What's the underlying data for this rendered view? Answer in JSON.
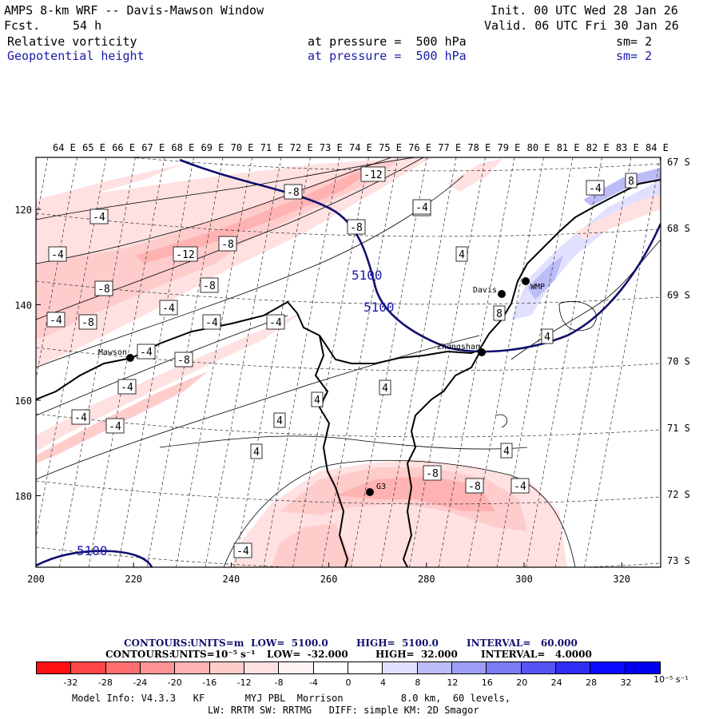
{
  "header": {
    "title": "AMPS 8-km WRF -- Davis-Mawson Window",
    "forecast_label": "Fcst.",
    "forecast_hours": "54 h",
    "init": "Init. 00 UTC Wed 28 Jan 26",
    "valid": "Valid. 06 UTC Fri 30 Jan 26",
    "field1": {
      "name": "Relative vorticity",
      "level": "at pressure =  500 hPa",
      "smooth": "sm= 2"
    },
    "field2": {
      "name": "Geopotential height",
      "level": "at pressure =  500 hPa",
      "smooth": "sm= 2"
    }
  },
  "map": {
    "lon_labels": [
      "64 E",
      "65 E",
      "66 E",
      "67 E",
      "68 E",
      "69 E",
      "70 E",
      "71 E",
      "72 E",
      "73 E",
      "74 E",
      "75 E",
      "76 E",
      "77 E",
      "78 E",
      "79 E",
      "80 E",
      "81 E",
      "82 E",
      "83 E",
      "84 E"
    ],
    "lat_labels": [
      "67 S",
      "68 S",
      "69 S",
      "70 S",
      "71 S",
      "72 S",
      "73 S"
    ],
    "x_ticks": [
      "200",
      "220",
      "240",
      "260",
      "280",
      "300",
      "320"
    ],
    "y_ticks": [
      "120",
      "140",
      "160",
      "180"
    ],
    "stations": [
      {
        "name": "Mawson"
      },
      {
        "name": "Davis"
      },
      {
        "name": "WMP"
      },
      {
        "name": "Zhongshan"
      },
      {
        "name": "G3"
      }
    ],
    "height_labels": [
      "5100",
      "5100",
      "5100"
    ],
    "vort_labels": [
      "-12",
      "-8",
      "-4",
      "-4",
      "-4",
      "-8",
      "-12",
      "-8",
      "-8",
      "-8",
      "-4",
      "-8",
      "-4",
      "-4",
      "-4",
      "-4",
      "-8",
      "-4",
      "-4",
      "-4",
      "-4",
      "4",
      "4",
      "4",
      "4",
      "4",
      "4",
      "8",
      "4",
      "-4",
      "8",
      "-8",
      "-8",
      "-4",
      "-4"
    ]
  },
  "footer": {
    "contours_height": {
      "label": "CONTOURS:",
      "units": "UNITS=m",
      "low": "LOW=  5100.0",
      "high": "HIGH=  5100.0",
      "interval": "INTERVAL=   60.000"
    },
    "contours_vort": {
      "label": "CONTOURS:",
      "units": "UNITS=10⁻⁵ s⁻¹",
      "low": "LOW=  -32.000",
      "high": "HIGH=  32.000",
      "interval": "INTERVAL=   4.0000"
    },
    "colorbar": {
      "colors": [
        "#ff1010",
        "#ff4646",
        "#ff6f6f",
        "#ff9393",
        "#ffb2b2",
        "#ffcccc",
        "#ffe1e1",
        "#fff2f2",
        "#ffffff",
        "#ffffff",
        "#e1e1ff",
        "#bcbcf6",
        "#9e9ef8",
        "#7c7cf6",
        "#5555f4",
        "#2e2ef4",
        "#0a0aff",
        "#0000ee"
      ],
      "labels": [
        "-32",
        "-28",
        "-24",
        "-20",
        "-16",
        "-12",
        "-8",
        "-4",
        "0",
        "4",
        "8",
        "12",
        "16",
        "20",
        "24",
        "28",
        "32"
      ],
      "units": "10⁻⁵ s⁻¹"
    },
    "model_info": "Model Info: V4.3.3   KF       MYJ PBL  Morrison          8.0 km,  60 levels,",
    "model_info2": "LW: RRTM SW: RRTMG   DIFF: simple KM: 2D Smagor"
  }
}
